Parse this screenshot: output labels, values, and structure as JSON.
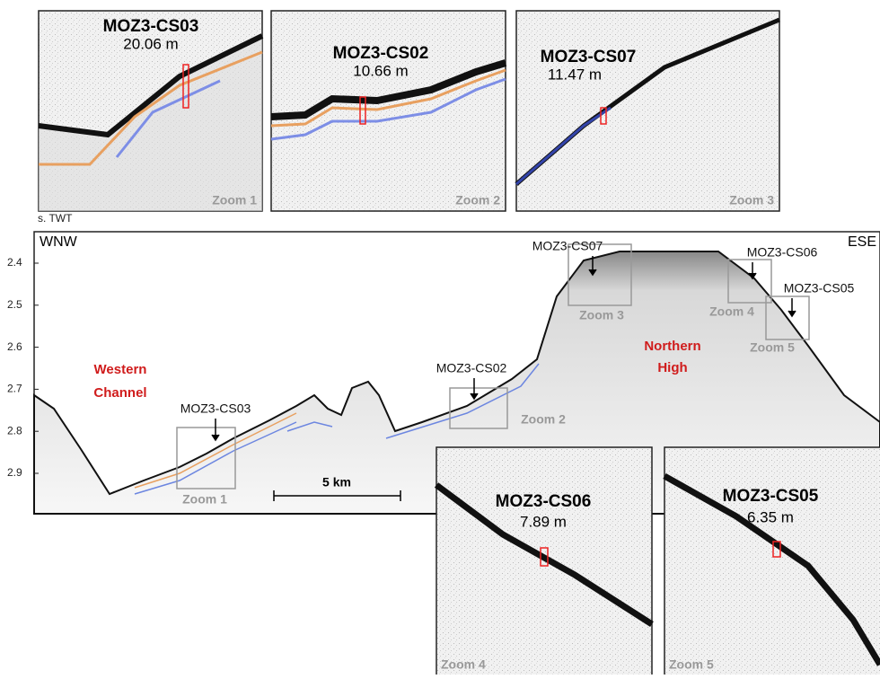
{
  "profile": {
    "y_axis_label": "s. TWT",
    "yticks": [
      2.4,
      2.5,
      2.6,
      2.7,
      2.8,
      2.9
    ],
    "left_direction": "WNW",
    "right_direction": "ESE",
    "regions": [
      "Western Channel",
      "Northern High"
    ],
    "core_labels": [
      "MOZ3-CS03",
      "MOZ3-CS02",
      "MOZ3-CS07",
      "MOZ3-CS06",
      "MOZ3-CS05"
    ],
    "zoom_labels": [
      "Zoom 1",
      "Zoom 2",
      "Zoom 3",
      "Zoom 4",
      "Zoom 5"
    ],
    "scale_bar": "5 km"
  },
  "zoom_panels": [
    {
      "core": "MOZ3-CS03",
      "length": "20.06 m",
      "label": "Zoom 1"
    },
    {
      "core": "MOZ3-CS02",
      "length": "10.66 m",
      "label": "Zoom 2"
    },
    {
      "core": "MOZ3-CS07",
      "length": "11.47 m",
      "label": "Zoom 3"
    },
    {
      "core": "MOZ3-CS06",
      "length": "7.89 m",
      "label": "Zoom 4"
    },
    {
      "core": "MOZ3-CS05",
      "length": "6.35 m",
      "label": "Zoom 5"
    }
  ]
}
